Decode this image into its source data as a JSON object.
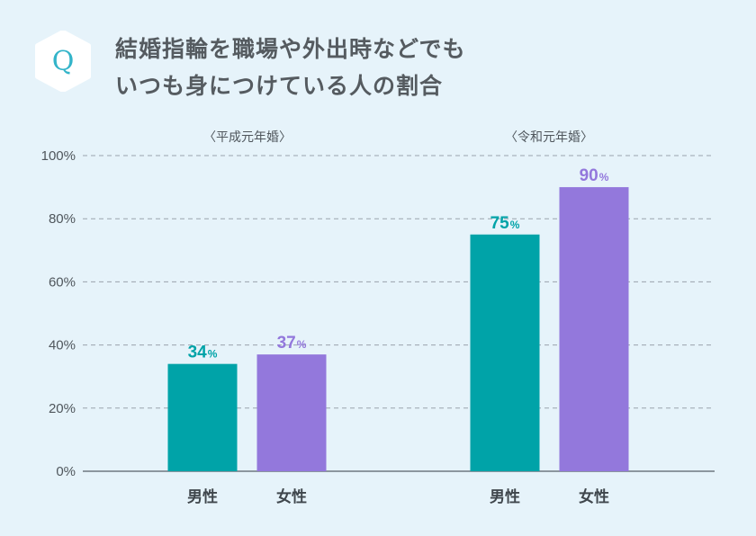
{
  "question": {
    "badge": "Q",
    "title_line1": "結婚指輪を職場や外出時などでも",
    "title_line2": "いつも身につけている人の割合"
  },
  "colors": {
    "male": "#00a3a8",
    "female": "#9378dc",
    "badge": "#33b4c9",
    "background": "#e6f3fa"
  },
  "chart_data": {
    "type": "bar",
    "title": "結婚指輪を職場や外出時などでもいつも身につけている人の割合",
    "ylim": [
      0,
      100
    ],
    "yticks": [
      "0%",
      "20%",
      "40%",
      "60%",
      "80%",
      "100%"
    ],
    "ytick_values": [
      0,
      20,
      40,
      60,
      80,
      100
    ],
    "grid": true,
    "groups": [
      {
        "label": "〈平成元年婚〉",
        "bars": [
          {
            "category": "男性",
            "series": "male",
            "value": 34,
            "label": "34",
            "unit": "%"
          },
          {
            "category": "女性",
            "series": "female",
            "value": 37,
            "label": "37",
            "unit": "%"
          }
        ]
      },
      {
        "label": "〈令和元年婚〉",
        "bars": [
          {
            "category": "男性",
            "series": "male",
            "value": 75,
            "label": "75",
            "unit": "%"
          },
          {
            "category": "女性",
            "series": "female",
            "value": 90,
            "label": "90",
            "unit": "%"
          }
        ]
      }
    ]
  }
}
